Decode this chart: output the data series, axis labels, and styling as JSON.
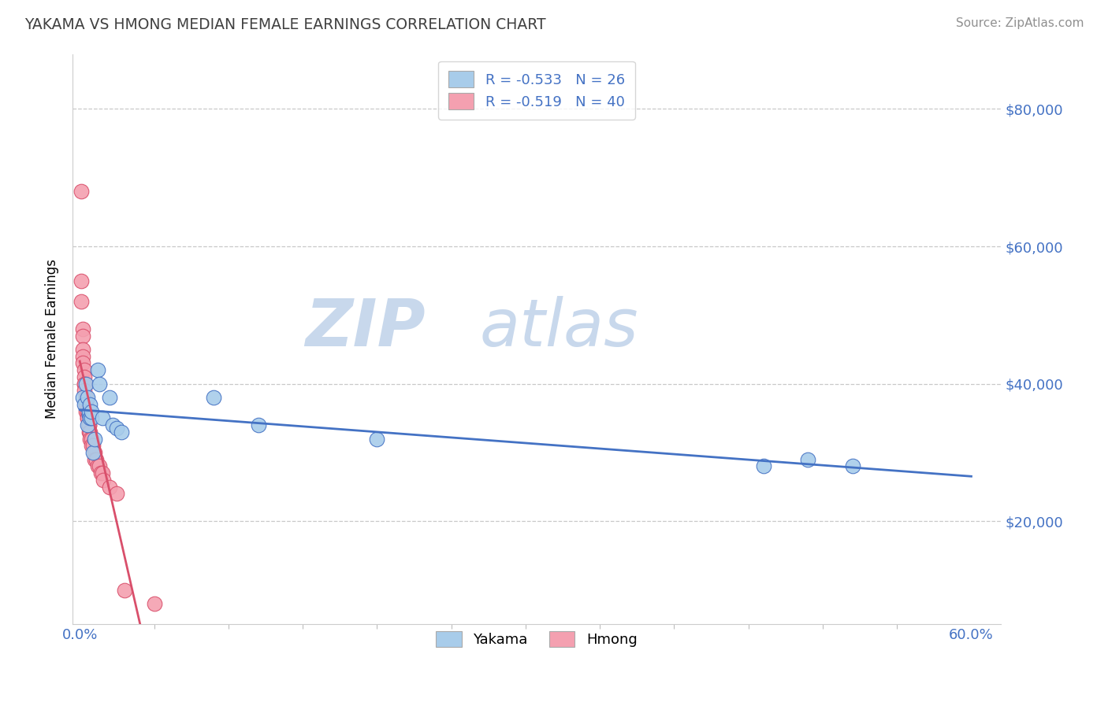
{
  "title": "YAKAMA VS HMONG MEDIAN FEMALE EARNINGS CORRELATION CHART",
  "source": "Source: ZipAtlas.com",
  "ylabel": "Median Female Earnings",
  "ylabel_ticks": [
    "$20,000",
    "$40,000",
    "$60,000",
    "$80,000"
  ],
  "ylabel_values": [
    20000,
    40000,
    60000,
    80000
  ],
  "xlim": [
    -0.005,
    0.62
  ],
  "ylim": [
    5000,
    88000
  ],
  "legend_r_yakama": "R = -0.533",
  "legend_n_yakama": "N = 26",
  "legend_r_hmong": "R = -0.519",
  "legend_n_hmong": "N = 40",
  "yakama_color": "#A8CCEA",
  "hmong_color": "#F4A0B0",
  "trendline_yakama_color": "#4472C4",
  "trendline_hmong_color": "#D94F6B",
  "watermark_zip": "ZIP",
  "watermark_atlas": "atlas",
  "watermark_color": "#C8D8EC",
  "background_color": "#FFFFFF",
  "grid_color": "#C8C8C8",
  "title_color": "#404040",
  "axis_label_color": "#4472C4",
  "source_color": "#909090",
  "yakama_x": [
    0.002,
    0.003,
    0.004,
    0.005,
    0.005,
    0.006,
    0.006,
    0.007,
    0.007,
    0.008,
    0.008,
    0.009,
    0.01,
    0.012,
    0.013,
    0.015,
    0.02,
    0.022,
    0.025,
    0.028,
    0.09,
    0.12,
    0.2,
    0.46,
    0.49,
    0.52
  ],
  "yakama_y": [
    38000,
    37000,
    40000,
    34000,
    38000,
    35500,
    36000,
    35000,
    37000,
    35000,
    36000,
    30000,
    32000,
    42000,
    40000,
    35000,
    38000,
    34000,
    33500,
    33000,
    38000,
    34000,
    32000,
    28000,
    29000,
    28000
  ],
  "hmong_x": [
    0.001,
    0.001,
    0.001,
    0.002,
    0.002,
    0.002,
    0.002,
    0.002,
    0.003,
    0.003,
    0.003,
    0.003,
    0.003,
    0.004,
    0.004,
    0.004,
    0.004,
    0.005,
    0.005,
    0.005,
    0.006,
    0.006,
    0.006,
    0.007,
    0.007,
    0.008,
    0.008,
    0.009,
    0.01,
    0.01,
    0.011,
    0.012,
    0.013,
    0.014,
    0.015,
    0.016,
    0.02,
    0.025,
    0.03,
    0.05
  ],
  "hmong_y": [
    68000,
    55000,
    52000,
    48000,
    47000,
    45000,
    44000,
    43000,
    42000,
    41000,
    40000,
    40000,
    39000,
    38000,
    37000,
    37000,
    36000,
    36000,
    35000,
    35000,
    34000,
    34000,
    33000,
    33000,
    32000,
    32000,
    31000,
    31000,
    30000,
    29000,
    29000,
    28000,
    28000,
    27000,
    27000,
    26000,
    25000,
    24000,
    10000,
    8000
  ],
  "trendline_yakama_x0": 0.0,
  "trendline_yakama_x1": 0.6,
  "trendline_hmong_x0": 0.0,
  "trendline_hmong_x1": 0.055
}
